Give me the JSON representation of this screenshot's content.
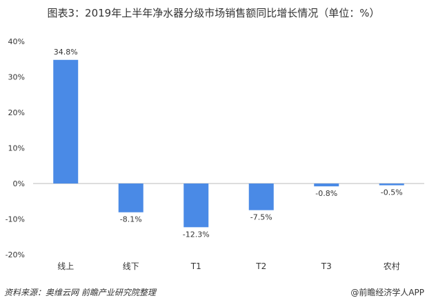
{
  "chart_data": {
    "type": "bar",
    "title": "图表3：2019年上半年净水器分级市场销售额同比增长情况（单位：%）",
    "categories": [
      "线上",
      "线下",
      "T1",
      "T2",
      "T3",
      "农村"
    ],
    "values": [
      34.8,
      -8.1,
      -12.3,
      -7.5,
      -0.8,
      -0.5
    ],
    "data_labels": [
      "34.8%",
      "-8.1%",
      "-12.3%",
      "-7.5%",
      "-0.8%",
      "-0.5%"
    ],
    "ylim": [
      -20,
      40
    ],
    "yticks": [
      40,
      30,
      20,
      10,
      0,
      -10,
      -20
    ],
    "ytick_labels": [
      "40%",
      "30%",
      "20%",
      "10%",
      "0%",
      "-10%",
      "-20%"
    ],
    "grid": false,
    "bar_color": "#4a8ae6"
  },
  "footer": {
    "source": "资料来源：奥维云网 前瞻产业研究院整理",
    "brand": "@前瞻经济学人APP"
  }
}
